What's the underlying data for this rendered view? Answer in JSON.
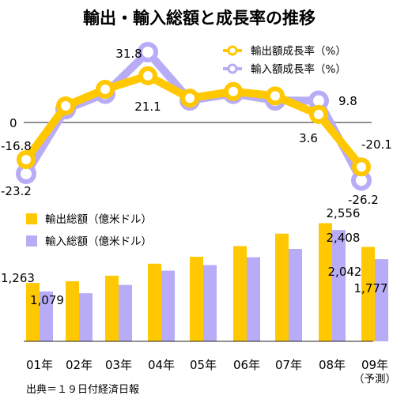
{
  "chart_data": [
    {
      "type": "line",
      "title": "輸出・輸入総額と成長率の推移",
      "categories": [
        "01年",
        "02年",
        "03年",
        "04年",
        "05年",
        "06年",
        "07年",
        "08年",
        "09年"
      ],
      "series": [
        {
          "name": "輸出額成長率（%）",
          "color": "#FFC800",
          "values": [
            -16.8,
            7.5,
            15.0,
            21.1,
            11.0,
            14.0,
            12.0,
            3.6,
            -20.1
          ],
          "labels": [
            "-16.8",
            null,
            null,
            "21.1",
            null,
            null,
            null,
            "3.6",
            "-20.1"
          ]
        },
        {
          "name": "輸入額成長率（%）",
          "color": "#B8ACF6",
          "values": [
            -23.2,
            6.0,
            13.0,
            31.8,
            10.0,
            13.0,
            10.0,
            9.8,
            -26.2
          ],
          "labels": [
            "-23.2",
            null,
            null,
            "31.8",
            null,
            null,
            null,
            "9.8",
            "-26.2"
          ]
        }
      ],
      "zero_label": "0"
    },
    {
      "type": "bar",
      "categories": [
        "01年",
        "02年",
        "03年",
        "04年",
        "05年",
        "06年",
        "07年",
        "08年",
        "09年"
      ],
      "category_note": "（予測）",
      "series": [
        {
          "name": "輸出総額（億米ドル）",
          "color": "#FFC800",
          "values": [
            1263,
            1300,
            1420,
            1680,
            1830,
            2060,
            2330,
            2556,
            2042
          ],
          "labels": [
            "1,263",
            null,
            null,
            null,
            null,
            null,
            null,
            "2,556",
            "2,042"
          ]
        },
        {
          "name": "輸入総額（億米ドル）",
          "color": "#B8ACF6",
          "values": [
            1079,
            1040,
            1220,
            1530,
            1650,
            1820,
            2000,
            2408,
            1777
          ],
          "labels": [
            "1,079",
            null,
            null,
            null,
            null,
            null,
            null,
            "2,408",
            "1,777"
          ]
        }
      ]
    }
  ],
  "source": "出典＝１９日付経済日報"
}
